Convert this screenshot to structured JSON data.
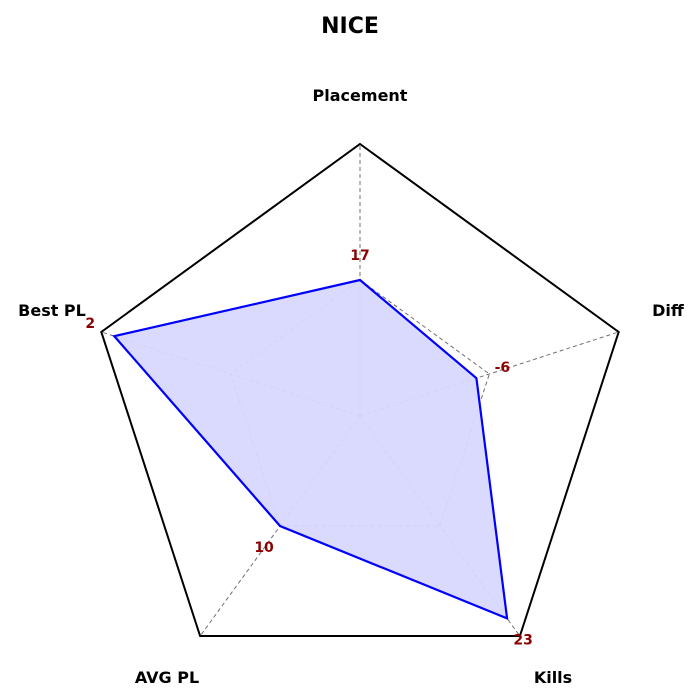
{
  "chart_data": {
    "type": "radar",
    "title": "NICE",
    "axes": [
      "Placement",
      "Diff",
      "Kills",
      "AVG PL",
      "Best PL"
    ],
    "values": [
      17,
      -6,
      23,
      10,
      2
    ],
    "normalized_values": [
      0.5,
      0.45,
      0.92,
      0.5,
      0.95
    ],
    "value_labels": [
      "17",
      "-6",
      "23",
      "10",
      "2"
    ],
    "grid": true,
    "grid_levels": 2,
    "colors": {
      "series_line": "#0000ff",
      "series_fill": "#d8d8ff",
      "outline": "#000000",
      "grid": "#707070",
      "value_label": "#8b0000"
    }
  }
}
